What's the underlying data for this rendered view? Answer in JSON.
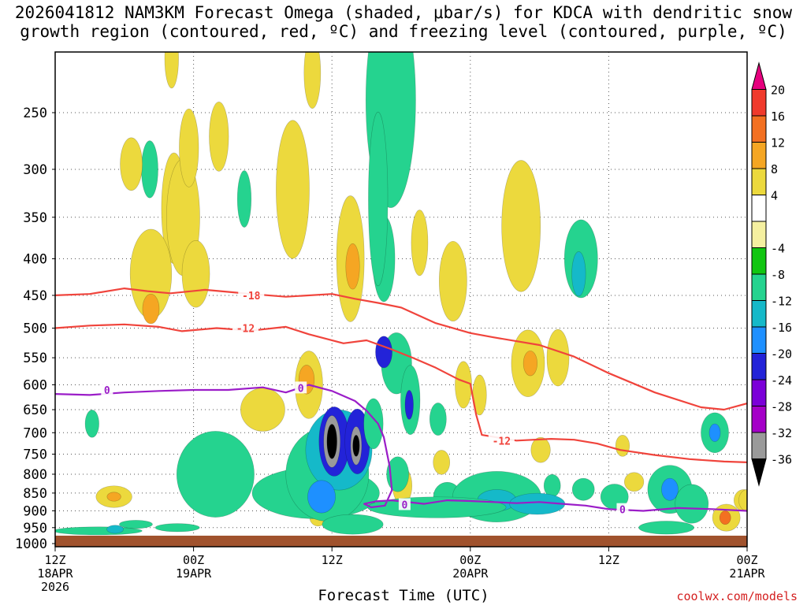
{
  "title": {
    "line1": "2026041812 NAM3KM Forecast Omega (shaded, μbar/s) for KDCA with dendritic snow",
    "line2": "growth region (contoured, red, ºC) and freezing level (contoured, purple, ºC)"
  },
  "credit": "coolwx.com/models",
  "chart_data": {
    "type": "heatmap",
    "title": "2026041812 NAM3KM Forecast Omega (shaded, μbar/s) for KDCA with dendritic snow growth region (contoured, red, ºC) and freezing level (contoured, purple, ºC)",
    "xlabel": "Forecast Time (UTC)",
    "ylabel": "",
    "x_unit": "hours since 2026-04-18 12Z",
    "xlim": [
      0,
      60
    ],
    "ylim": [
      1000,
      200
    ],
    "y_ticks": [
      250,
      300,
      350,
      400,
      450,
      500,
      550,
      600,
      650,
      700,
      750,
      800,
      850,
      900,
      950,
      1000
    ],
    "x_ticks": [
      {
        "hour": 0,
        "lines": [
          "12Z",
          "18APR",
          "2026"
        ]
      },
      {
        "hour": 12,
        "lines": [
          "00Z",
          "19APR"
        ]
      },
      {
        "hour": 24,
        "lines": [
          "12Z"
        ]
      },
      {
        "hour": 36,
        "lines": [
          "00Z",
          "20APR"
        ]
      },
      {
        "hour": 48,
        "lines": [
          "12Z"
        ]
      },
      {
        "hour": 60,
        "lines": [
          "00Z",
          "21APR"
        ]
      }
    ],
    "colorbar": {
      "labels": [
        "20",
        "16",
        "12",
        "8",
        "4",
        "-4",
        "-8",
        "-12",
        "-16",
        "-20",
        "-24",
        "-28",
        "-32",
        "-36"
      ],
      "levels": [
        {
          "value": 20,
          "color": "#e6007e"
        },
        {
          "value": 16,
          "color": "#f03a2c"
        },
        {
          "value": 12,
          "color": "#f37021"
        },
        {
          "value": 8,
          "color": "#f5a623"
        },
        {
          "value": 4,
          "color": "#ecd93d"
        },
        {
          "value": 0,
          "color": "#ffffff"
        },
        {
          "value": -4,
          "color": "#f5f0a0"
        },
        {
          "value": -8,
          "color": "#11c611"
        },
        {
          "value": -12,
          "color": "#25d38f"
        },
        {
          "value": -16,
          "color": "#15b9c9"
        },
        {
          "value": -20,
          "color": "#1e90ff"
        },
        {
          "value": -24,
          "color": "#2323d8"
        },
        {
          "value": -28,
          "color": "#7b00d8"
        },
        {
          "value": -32,
          "color": "#a500c8"
        },
        {
          "value": -36,
          "color": "#9a9a9a"
        },
        {
          "value": -40,
          "color": "#000000"
        }
      ]
    },
    "contours": [
      {
        "name": "isotherm -18C",
        "color": "#f0443c",
        "label": "-18",
        "label_at": {
          "hour": 17,
          "pressure": 450
        },
        "points": [
          [
            0,
            450
          ],
          [
            3,
            448
          ],
          [
            6,
            440
          ],
          [
            8,
            444
          ],
          [
            10,
            447
          ],
          [
            13,
            442
          ],
          [
            15,
            445
          ],
          [
            17,
            448
          ],
          [
            20,
            452
          ],
          [
            24,
            448
          ],
          [
            26,
            455
          ],
          [
            28,
            461
          ],
          [
            30,
            468
          ],
          [
            33,
            492
          ],
          [
            36,
            508
          ],
          [
            38,
            515
          ],
          [
            42,
            528
          ],
          [
            45,
            548
          ],
          [
            48,
            578
          ],
          [
            52,
            615
          ],
          [
            56,
            645
          ],
          [
            58,
            650
          ],
          [
            60,
            637
          ]
        ]
      },
      {
        "name": "isotherm -12C",
        "color": "#f0443c",
        "label": "-12",
        "label_at": {
          "hour": 16.5,
          "pressure": 500
        },
        "points": [
          [
            0,
            500
          ],
          [
            3,
            496
          ],
          [
            6,
            494
          ],
          [
            9,
            498
          ],
          [
            11,
            505
          ],
          [
            14,
            500
          ],
          [
            17,
            504
          ],
          [
            20,
            498
          ],
          [
            22,
            510
          ],
          [
            25,
            525
          ],
          [
            27,
            520
          ],
          [
            29,
            534
          ],
          [
            31,
            550
          ],
          [
            33,
            568
          ],
          [
            35,
            590
          ],
          [
            36,
            598
          ],
          [
            36.5,
            660
          ],
          [
            37,
            705
          ],
          [
            40,
            718
          ],
          [
            43,
            714
          ],
          [
            45,
            716
          ],
          [
            47,
            725
          ],
          [
            49,
            740
          ],
          [
            52,
            752
          ],
          [
            55,
            762
          ],
          [
            58,
            768
          ],
          [
            60,
            770
          ]
        ]
      },
      {
        "name": "freezing level 0C",
        "color": "#9b1dc8",
        "label": "0",
        "label_at": {
          "hour": 4.5,
          "pressure": 610
        },
        "points": [
          [
            0,
            618
          ],
          [
            3,
            620
          ],
          [
            6,
            615
          ],
          [
            9,
            612
          ],
          [
            12,
            610
          ],
          [
            15,
            610
          ],
          [
            18,
            605
          ],
          [
            20,
            615
          ],
          [
            22,
            600
          ],
          [
            24,
            612
          ],
          [
            26,
            632
          ],
          [
            27,
            652
          ],
          [
            28,
            680
          ],
          [
            28.5,
            710
          ],
          [
            29,
            780
          ],
          [
            29.2,
            842
          ],
          [
            28.6,
            885
          ],
          [
            27.4,
            890
          ],
          [
            26.8,
            880
          ],
          [
            27.8,
            873
          ],
          [
            29.2,
            870
          ],
          [
            32,
            880
          ],
          [
            34,
            870
          ],
          [
            36,
            872
          ],
          [
            38,
            875
          ],
          [
            40,
            878
          ],
          [
            42,
            875
          ],
          [
            44,
            880
          ],
          [
            46,
            885
          ],
          [
            48,
            895
          ],
          [
            51,
            900
          ],
          [
            54,
            892
          ],
          [
            57,
            895
          ],
          [
            60,
            900
          ]
        ]
      },
      {
        "name": "freezing level 0C (mid label)",
        "color": "#9b1dc8",
        "label": "0",
        "label_at": {
          "hour": 21.3,
          "pressure": 606
        },
        "points": []
      },
      {
        "name": "freezing level 0C (lower label)",
        "color": "#9b1dc8",
        "label": "0",
        "label_at": {
          "hour": 30.3,
          "pressure": 882
        },
        "points": []
      },
      {
        "name": "freezing level 0C (right label)",
        "color": "#9b1dc8",
        "label": "0",
        "label_at": {
          "hour": 49.2,
          "pressure": 896
        },
        "points": []
      },
      {
        "name": "isotherm -12C (right label)",
        "color": "#f0443c",
        "label": "-12",
        "label_at": {
          "hour": 38.7,
          "pressure": 718
        },
        "points": []
      }
    ],
    "omega_cells": [
      {
        "hour": 10.3,
        "pressure": 340,
        "dh": 0.45,
        "dp": 120,
        "value": 4
      },
      {
        "hour": 11.1,
        "pressure": 350,
        "dh": 0.6,
        "dp": 130,
        "value": 4
      },
      {
        "hour": 11.6,
        "pressure": 280,
        "dh": 0.35,
        "dp": 70,
        "value": 4
      },
      {
        "hour": 8.3,
        "pressure": 420,
        "dh": 0.75,
        "dp": 120,
        "value": 4
      },
      {
        "hour": 8.3,
        "pressure": 470,
        "dh": 0.3,
        "dp": 45,
        "value": 10
      },
      {
        "hour": 8.2,
        "pressure": 300,
        "dh": 0.3,
        "dp": 55,
        "value": -8
      },
      {
        "hour": 6.6,
        "pressure": 295,
        "dh": 0.4,
        "dp": 50,
        "value": 4
      },
      {
        "hour": 10.1,
        "pressure": 210,
        "dh": 0.25,
        "dp": 40,
        "value": 4
      },
      {
        "hour": 14.2,
        "pressure": 270,
        "dh": 0.35,
        "dp": 60,
        "value": 4
      },
      {
        "hour": 12.2,
        "pressure": 420,
        "dh": 0.5,
        "dp": 90,
        "value": 4
      },
      {
        "hour": 16.4,
        "pressure": 330,
        "dh": 0.25,
        "dp": 60,
        "value": -8
      },
      {
        "hour": 20.6,
        "pressure": 320,
        "dh": 0.6,
        "dp": 140,
        "value": 4
      },
      {
        "hour": 22.3,
        "pressure": 220,
        "dh": 0.3,
        "dp": 50,
        "value": 4
      },
      {
        "hour": 22.0,
        "pressure": 600,
        "dh": 0.5,
        "dp": 130,
        "value": 4
      },
      {
        "hour": 21.8,
        "pressure": 590,
        "dh": 0.28,
        "dp": 55,
        "value": 10
      },
      {
        "hour": 25.6,
        "pressure": 400,
        "dh": 0.5,
        "dp": 160,
        "value": 4
      },
      {
        "hour": 25.8,
        "pressure": 410,
        "dh": 0.25,
        "dp": 60,
        "value": 10
      },
      {
        "hour": 29.1,
        "pressure": 240,
        "dh": 0.9,
        "dp": 160,
        "value": -10
      },
      {
        "hour": 28.5,
        "pressure": 400,
        "dh": 0.4,
        "dp": 110,
        "value": -10
      },
      {
        "hour": 29.6,
        "pressure": 560,
        "dh": 0.55,
        "dp": 110,
        "value": -8
      },
      {
        "hour": 28.5,
        "pressure": 540,
        "dh": 0.3,
        "dp": 55,
        "value": -22
      },
      {
        "hour": 28.0,
        "pressure": 330,
        "dh": 0.35,
        "dp": 180,
        "value": -8
      },
      {
        "hour": 30.8,
        "pressure": 630,
        "dh": 0.35,
        "dp": 140,
        "value": -10
      },
      {
        "hour": 30.7,
        "pressure": 640,
        "dh": 0.15,
        "dp": 60,
        "value": -22
      },
      {
        "hour": 31.6,
        "pressure": 380,
        "dh": 0.3,
        "dp": 80,
        "value": 4
      },
      {
        "hour": 30.1,
        "pressure": 830,
        "dh": 0.35,
        "dp": 100,
        "value": 4
      },
      {
        "hour": 30.0,
        "pressure": 820,
        "dh": 0.15,
        "dp": 40,
        "value": 10
      },
      {
        "hour": 33.2,
        "pressure": 670,
        "dh": 0.3,
        "dp": 70,
        "value": -8
      },
      {
        "hour": 33.5,
        "pressure": 770,
        "dh": 0.3,
        "dp": 60,
        "value": 4
      },
      {
        "hour": 34.5,
        "pressure": 430,
        "dh": 0.5,
        "dp": 110,
        "value": 4
      },
      {
        "hour": 34.0,
        "pressure": 860,
        "dh": 0.5,
        "dp": 80,
        "value": -10
      },
      {
        "hour": 35.4,
        "pressure": 600,
        "dh": 0.3,
        "dp": 90,
        "value": 4
      },
      {
        "hour": 36.8,
        "pressure": 620,
        "dh": 0.25,
        "dp": 80,
        "value": 4
      },
      {
        "hour": 38.3,
        "pressure": 860,
        "dh": 1.6,
        "dp": 140,
        "value": -10
      },
      {
        "hour": 38.3,
        "pressure": 870,
        "dh": 0.7,
        "dp": 60,
        "value": -14
      },
      {
        "hour": 40.4,
        "pressure": 360,
        "dh": 0.7,
        "dp": 150,
        "value": 4
      },
      {
        "hour": 41.0,
        "pressure": 560,
        "dh": 0.6,
        "dp": 120,
        "value": 4
      },
      {
        "hour": 41.2,
        "pressure": 560,
        "dh": 0.25,
        "dp": 45,
        "value": 10
      },
      {
        "hour": 42.1,
        "pressure": 740,
        "dh": 0.35,
        "dp": 60,
        "value": 4
      },
      {
        "hour": 43.6,
        "pressure": 550,
        "dh": 0.4,
        "dp": 100,
        "value": 4
      },
      {
        "hour": 43.1,
        "pressure": 830,
        "dh": 0.3,
        "dp": 60,
        "value": -8
      },
      {
        "hour": 45.6,
        "pressure": 400,
        "dh": 0.6,
        "dp": 100,
        "value": -8
      },
      {
        "hour": 45.4,
        "pressure": 420,
        "dh": 0.25,
        "dp": 60,
        "value": -14
      },
      {
        "hour": 45.8,
        "pressure": 840,
        "dh": 0.4,
        "dp": 60,
        "value": -8
      },
      {
        "hour": 49.2,
        "pressure": 730,
        "dh": 0.25,
        "dp": 50,
        "value": 4
      },
      {
        "hour": 50.2,
        "pressure": 820,
        "dh": 0.35,
        "dp": 50,
        "value": 4
      },
      {
        "hour": 53.3,
        "pressure": 840,
        "dh": 0.8,
        "dp": 130,
        "value": -10
      },
      {
        "hour": 53.3,
        "pressure": 840,
        "dh": 0.3,
        "dp": 60,
        "value": -18
      },
      {
        "hour": 55.2,
        "pressure": 880,
        "dh": 0.6,
        "dp": 110,
        "value": -10
      },
      {
        "hour": 57.2,
        "pressure": 700,
        "dh": 0.5,
        "dp": 90,
        "value": -10
      },
      {
        "hour": 57.2,
        "pressure": 700,
        "dh": 0.2,
        "dp": 40,
        "value": -16
      },
      {
        "hour": 58.2,
        "pressure": 920,
        "dh": 0.5,
        "dp": 80,
        "value": 6
      },
      {
        "hour": 58.1,
        "pressure": 920,
        "dh": 0.2,
        "dp": 40,
        "value": 12
      },
      {
        "hour": 59.7,
        "pressure": 870,
        "dh": 0.35,
        "dp": 60,
        "value": 4
      },
      {
        "hour": 5.1,
        "pressure": 860,
        "dh": 0.65,
        "dp": 60,
        "value": 4
      },
      {
        "hour": 5.1,
        "pressure": 860,
        "dh": 0.25,
        "dp": 25,
        "value": 10
      },
      {
        "hour": 3.7,
        "pressure": 960,
        "dh": 1.6,
        "dp": 25,
        "value": -8
      },
      {
        "hour": 5.2,
        "pressure": 955,
        "dh": 0.3,
        "dp": 25,
        "value": -12
      },
      {
        "hour": 7.0,
        "pressure": 940,
        "dh": 0.6,
        "dp": 25,
        "value": -8
      },
      {
        "hour": 10.6,
        "pressure": 950,
        "dh": 0.8,
        "dp": 25,
        "value": -8
      },
      {
        "hour": 13.9,
        "pressure": 800,
        "dh": 1.4,
        "dp": 220,
        "value": -8
      },
      {
        "hour": 18.0,
        "pressure": 650,
        "dh": 0.8,
        "dp": 90,
        "value": 4
      },
      {
        "hour": 3.2,
        "pressure": 680,
        "dh": 0.25,
        "dp": 60,
        "value": -8
      },
      {
        "hour": 19.2,
        "pressure": 850,
        "dh": 0.2,
        "dp": 40,
        "value": 4
      },
      {
        "hour": 22.8,
        "pressure": 920,
        "dh": 0.3,
        "dp": 50,
        "value": 4
      },
      {
        "hour": 22.6,
        "pressure": 850,
        "dh": 2.3,
        "dp": 140,
        "value": -10
      },
      {
        "hour": 23.6,
        "pressure": 800,
        "dh": 1.5,
        "dp": 240,
        "value": -10
      },
      {
        "hour": 24.6,
        "pressure": 740,
        "dh": 1.2,
        "dp": 190,
        "value": -14
      },
      {
        "hour": 23.1,
        "pressure": 860,
        "dh": 0.5,
        "dp": 90,
        "value": -18
      },
      {
        "hour": 24.2,
        "pressure": 720,
        "dh": 0.55,
        "dp": 160,
        "value": -22
      },
      {
        "hour": 26.2,
        "pressure": 720,
        "dh": 0.45,
        "dp": 150,
        "value": -22
      },
      {
        "hour": 24.0,
        "pressure": 720,
        "dh": 0.3,
        "dp": 120,
        "value": -32
      },
      {
        "hour": 24.0,
        "pressure": 720,
        "dh": 0.18,
        "dp": 80,
        "value": -40
      },
      {
        "hour": 26.1,
        "pressure": 730,
        "dh": 0.2,
        "dp": 90,
        "value": -34
      },
      {
        "hour": 26.1,
        "pressure": 730,
        "dh": 0.12,
        "dp": 50,
        "value": -40
      },
      {
        "hour": 25.8,
        "pressure": 940,
        "dh": 1.1,
        "dp": 60,
        "value": -10
      },
      {
        "hour": 27.6,
        "pressure": 680,
        "dh": 0.35,
        "dp": 110,
        "value": -10
      },
      {
        "hour": 29.7,
        "pressure": 800,
        "dh": 0.4,
        "dp": 90,
        "value": -10
      },
      {
        "hour": 33.1,
        "pressure": 890,
        "dh": 2.5,
        "dp": 60,
        "value": -8
      },
      {
        "hour": 41.8,
        "pressure": 880,
        "dh": 1.0,
        "dp": 60,
        "value": -12
      },
      {
        "hour": 48.5,
        "pressure": 860,
        "dh": 0.5,
        "dp": 70,
        "value": -8
      },
      {
        "hour": 53.0,
        "pressure": 950,
        "dh": 1.0,
        "dp": 40,
        "value": -8
      },
      {
        "hour": 60.0,
        "pressure": 870,
        "dh": 0.3,
        "dp": 60,
        "value": 4
      }
    ]
  }
}
